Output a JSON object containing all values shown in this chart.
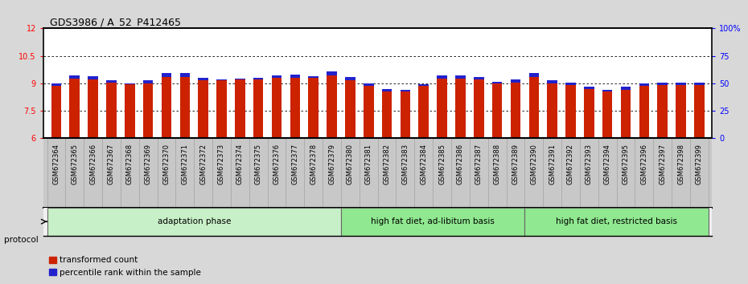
{
  "title": "GDS3986 / A_52_P412465",
  "samples": [
    "GSM672364",
    "GSM672365",
    "GSM672366",
    "GSM672367",
    "GSM672368",
    "GSM672369",
    "GSM672370",
    "GSM672371",
    "GSM672372",
    "GSM672373",
    "GSM672374",
    "GSM672375",
    "GSM672376",
    "GSM672377",
    "GSM672378",
    "GSM672379",
    "GSM672380",
    "GSM672381",
    "GSM672382",
    "GSM672383",
    "GSM672384",
    "GSM672385",
    "GSM672386",
    "GSM672387",
    "GSM672388",
    "GSM672389",
    "GSM672390",
    "GSM672391",
    "GSM672392",
    "GSM672393",
    "GSM672394",
    "GSM672395",
    "GSM672396",
    "GSM672397",
    "GSM672398",
    "GSM672399"
  ],
  "red_values": [
    8.85,
    9.25,
    9.2,
    9.05,
    8.95,
    9.0,
    9.35,
    9.35,
    9.15,
    9.15,
    9.2,
    9.2,
    9.3,
    9.3,
    9.3,
    9.45,
    9.15,
    8.85,
    8.55,
    8.55,
    8.85,
    9.25,
    9.25,
    9.2,
    9.0,
    9.05,
    9.35,
    9.0,
    8.9,
    8.7,
    8.55,
    8.65,
    8.85,
    8.9,
    8.9,
    8.9
  ],
  "blue_segments": [
    0.15,
    0.2,
    0.2,
    0.1,
    0.05,
    0.15,
    0.2,
    0.2,
    0.15,
    0.05,
    0.05,
    0.1,
    0.15,
    0.2,
    0.1,
    0.2,
    0.2,
    0.15,
    0.15,
    0.1,
    0.1,
    0.2,
    0.2,
    0.15,
    0.1,
    0.15,
    0.2,
    0.15,
    0.15,
    0.1,
    0.1,
    0.15,
    0.15,
    0.15,
    0.15,
    0.15
  ],
  "groups": [
    {
      "label": "adaptation phase",
      "start": 0,
      "end": 16
    },
    {
      "label": "high fat diet, ad-libitum basis",
      "start": 16,
      "end": 26
    },
    {
      "label": "high fat diet, restricted basis",
      "start": 26,
      "end": 36
    }
  ],
  "group_colors": [
    "#c8f0c8",
    "#90e890",
    "#90e890"
  ],
  "ylim_left": [
    6,
    12
  ],
  "yticks_left": [
    6,
    7.5,
    9,
    10.5,
    12
  ],
  "ylim_right": [
    0,
    100
  ],
  "yticks_right": [
    0,
    25,
    50,
    75,
    100
  ],
  "yticklabels_right": [
    "0",
    "25",
    "50",
    "75",
    "100%"
  ],
  "bar_color_red": "#cc2200",
  "bar_color_blue": "#2222cc",
  "plot_bg": "#ffffff",
  "fig_bg": "#d8d8d8",
  "label_bg": "#c8c8c8",
  "title_fontsize": 9,
  "tick_fontsize": 7,
  "label_fontsize": 6,
  "group_fontsize": 7.5,
  "bar_width": 0.55
}
